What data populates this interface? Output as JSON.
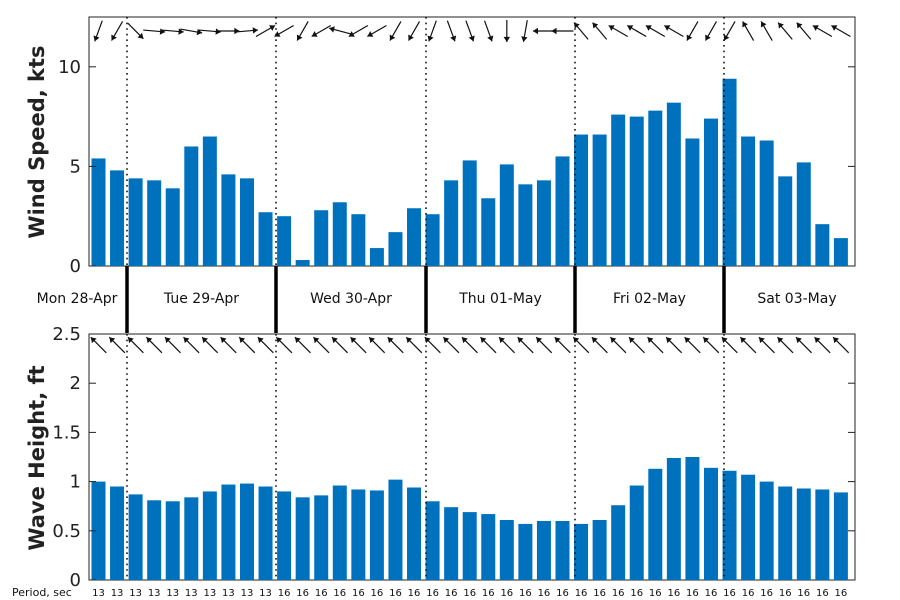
{
  "chart_data": [
    {
      "type": "bar",
      "ylabel": "Wind Speed, kts",
      "ylim": [
        0,
        12.5
      ],
      "yticks": [
        0,
        5,
        10
      ],
      "bar_color": "#0072bd",
      "values": [
        5.4,
        4.8,
        4.4,
        4.3,
        3.9,
        6.0,
        6.5,
        4.6,
        4.4,
        2.7,
        2.5,
        0.3,
        2.8,
        3.2,
        2.6,
        0.9,
        1.7,
        2.9,
        2.6,
        4.3,
        5.3,
        3.4,
        5.1,
        4.1,
        4.3,
        5.5,
        6.6,
        6.6,
        7.6,
        7.5,
        7.8,
        8.2,
        6.4,
        7.4,
        9.4,
        6.5,
        6.3,
        4.5,
        5.2,
        2.1,
        1.4
      ],
      "direction_arrows": "wind direction arrow above each bar"
    },
    {
      "type": "bar",
      "ylabel": "Wave Height, ft",
      "ylim": [
        0,
        2.5
      ],
      "yticks": [
        "0",
        "0.5",
        "1",
        "1.5",
        "2",
        "2.5"
      ],
      "bar_color": "#0072bd",
      "values": [
        1.0,
        0.95,
        0.87,
        0.81,
        0.8,
        0.84,
        0.9,
        0.97,
        0.98,
        0.95,
        0.9,
        0.84,
        0.86,
        0.96,
        0.92,
        0.91,
        1.02,
        0.94,
        0.8,
        0.74,
        0.69,
        0.67,
        0.61,
        0.57,
        0.6,
        0.6,
        0.57,
        0.61,
        0.76,
        0.96,
        1.13,
        1.24,
        1.25,
        1.14,
        1.11,
        1.07,
        1.0,
        0.95,
        0.93,
        0.92,
        0.89
      ],
      "direction_arrows": "wave direction arrow above each bar"
    }
  ],
  "days": [
    "Mon 28-Apr",
    "Tue 29-Apr",
    "Wed 30-Apr",
    "Thu 01-May",
    "Fri 02-May",
    "Sat 03-May"
  ],
  "period_label": "Period, sec",
  "periods": [
    13,
    13,
    13,
    13,
    13,
    13,
    13,
    13,
    13,
    13,
    16,
    16,
    16,
    16,
    16,
    16,
    16,
    16,
    16,
    16,
    16,
    16,
    16,
    16,
    16,
    16,
    16,
    16,
    16,
    16,
    16,
    16,
    16,
    16,
    16,
    16,
    16,
    16,
    16,
    16,
    16
  ],
  "wind_dir_deg": [
    200,
    210,
    135,
    95,
    95,
    100,
    95,
    90,
    85,
    60,
    240,
    210,
    240,
    285,
    240,
    240,
    210,
    210,
    200,
    160,
    160,
    160,
    180,
    190,
    270,
    270,
    320,
    320,
    300,
    300,
    300,
    300,
    210,
    210,
    210,
    330,
    330,
    320,
    320,
    300,
    300
  ],
  "wave_dir_deg": [
    315,
    315,
    315,
    315,
    315,
    315,
    315,
    315,
    315,
    315,
    315,
    315,
    315,
    315,
    315,
    315,
    315,
    315,
    315,
    315,
    315,
    315,
    315,
    315,
    315,
    315,
    315,
    315,
    315,
    315,
    315,
    315,
    315,
    315,
    315,
    315,
    315,
    315,
    315,
    315,
    315
  ]
}
